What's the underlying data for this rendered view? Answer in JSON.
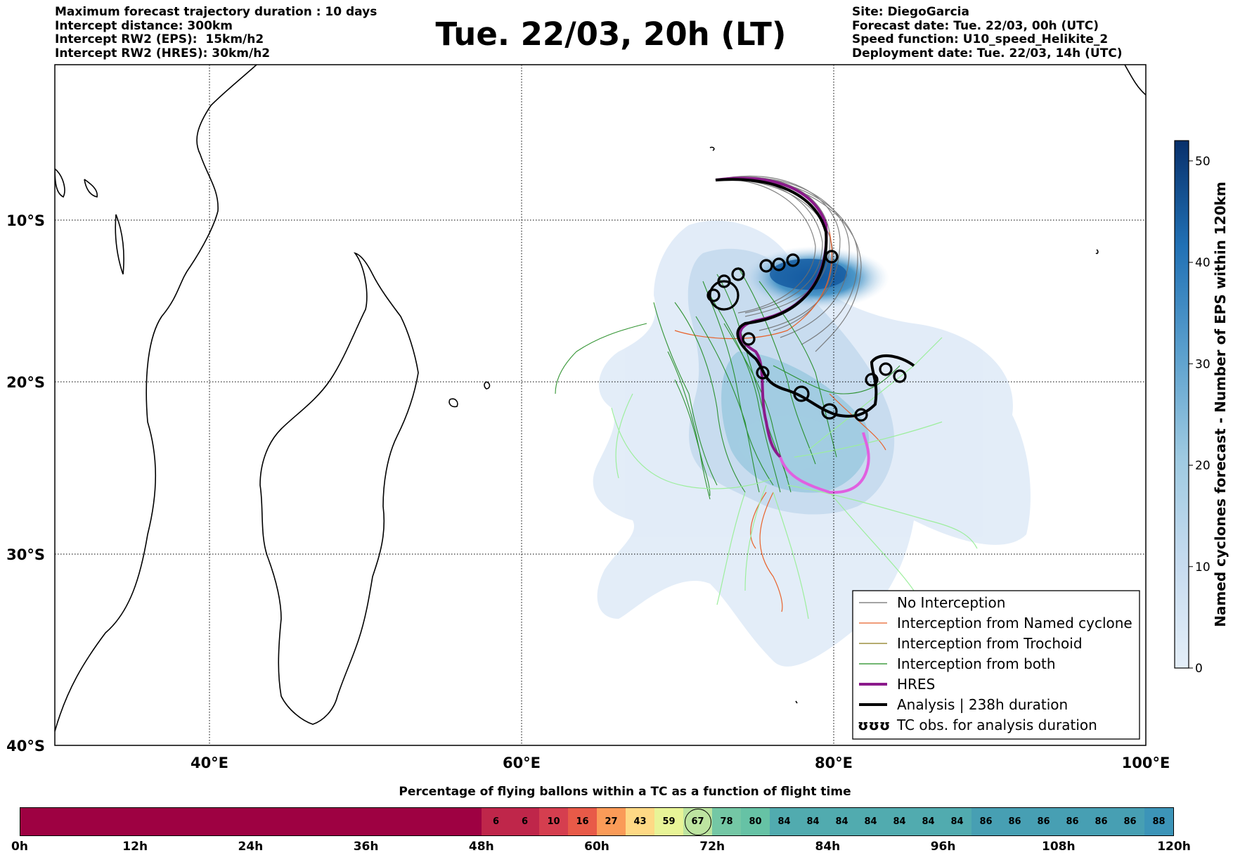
{
  "header": {
    "left_lines": [
      "Maximum forecast trajectory duration : 10 days",
      "Intercept distance: 300km",
      "Intercept RW2 (EPS):  15km/h2",
      "Intercept RW2 (HRES): 30km/h2"
    ],
    "title": "Tue. 22/03, 20h (LT)",
    "right_lines": [
      "Site: DiegoGarcia",
      "Forecast date: Tue. 22/03, 00h (UTC)",
      "Speed function: U10_speed_Helikite_2",
      "Deployment date: Tue. 22/03, 14h (UTC)"
    ]
  },
  "map": {
    "lon_ticks": [
      "40°E",
      "60°E",
      "80°E",
      "100°E"
    ],
    "lat_ticks": [
      "10°S",
      "20°S",
      "30°S",
      "40°S"
    ],
    "lon_range": [
      30,
      100
    ],
    "lat_range": [
      -40,
      -0.3
    ]
  },
  "legend": {
    "items": [
      {
        "label": "No Interception",
        "color": "#6e6e6e",
        "style": "thin"
      },
      {
        "label": "Interception from Named cyclone",
        "color": "#e8622b",
        "style": "thin"
      },
      {
        "label": "Interception from Trochoid",
        "color": "#8a7a1a",
        "style": "thin"
      },
      {
        "label": "Interception from both",
        "color": "#1e8a1e",
        "style": "thin"
      },
      {
        "label": "HRES",
        "color": "#8b1a8b",
        "style": "thick"
      },
      {
        "label": "Analysis | 238h duration",
        "color": "#000000",
        "style": "thick"
      },
      {
        "label": "TC obs. for analysis duration",
        "color": "#000000",
        "style": "symbol"
      }
    ],
    "symbol_glyph": "ʊʊʊ"
  },
  "colorbar": {
    "label": "Named cyclones forecast - Number of EPS within 120km",
    "ticks": [
      "0",
      "10",
      "20",
      "30",
      "40",
      "50"
    ],
    "range": [
      0,
      52
    ],
    "color_low": "#e4eef8",
    "color_high": "#08306b"
  },
  "flight_bar": {
    "title": "Percentage of flying ballons within a TC as a function of flight time",
    "tick_labels": [
      "0h",
      "12h",
      "24h",
      "36h",
      "48h",
      "60h",
      "72h",
      "84h",
      "96h",
      "108h",
      "120h"
    ],
    "hours_per_segment": 3,
    "segments_empty_count": 16,
    "empty_color": "#9e0142",
    "values": [
      "6",
      "6",
      "10",
      "16",
      "27",
      "43",
      "59",
      "67",
      "78",
      "80",
      "84",
      "84",
      "84",
      "84",
      "84",
      "84",
      "84",
      "86",
      "86",
      "86",
      "86",
      "86",
      "86",
      "88"
    ],
    "circled_value": "67"
  }
}
